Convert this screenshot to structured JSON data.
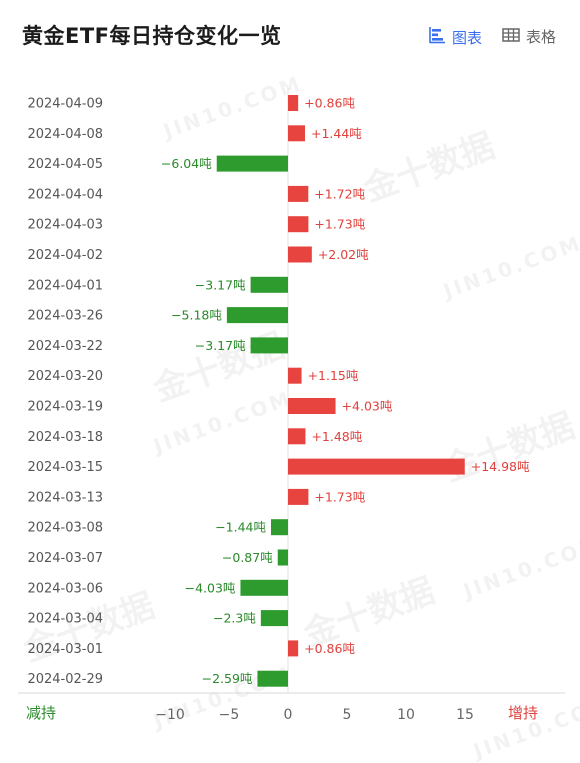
{
  "header": {
    "title": "黄金ETF每日持仓变化一览",
    "tabs": [
      {
        "label": "图表",
        "icon": "bar-chart-icon",
        "active": true
      },
      {
        "label": "表格",
        "icon": "table-icon",
        "active": false
      }
    ]
  },
  "watermark": {
    "text_cn": "金十数据",
    "text_en": "JIN10.COM"
  },
  "legend": {
    "decrease": "减持",
    "increase": "增持"
  },
  "colors": {
    "positive": "#e8443f",
    "negative": "#2e9b2e",
    "accent": "#3a6ff0",
    "positive_text": "#e0413c",
    "negative_text": "#2a8a2a"
  },
  "chart_data": {
    "type": "bar",
    "orientation": "horizontal",
    "unit": "吨",
    "categories": [
      "2024-04-09",
      "2024-04-08",
      "2024-04-05",
      "2024-04-04",
      "2024-04-03",
      "2024-04-02",
      "2024-04-01",
      "2024-03-26",
      "2024-03-22",
      "2024-03-20",
      "2024-03-19",
      "2024-03-18",
      "2024-03-15",
      "2024-03-13",
      "2024-03-08",
      "2024-03-07",
      "2024-03-06",
      "2024-03-04",
      "2024-03-01",
      "2024-02-29"
    ],
    "values": [
      0.86,
      1.44,
      -6.04,
      1.72,
      1.73,
      2.02,
      -3.17,
      -5.18,
      -3.17,
      1.15,
      4.03,
      1.48,
      14.98,
      1.73,
      -1.44,
      -0.87,
      -4.03,
      -2.3,
      0.86,
      -2.59
    ],
    "labels": [
      "+0.86吨",
      "+1.44吨",
      "−6.04吨",
      "+1.72吨",
      "+1.73吨",
      "+2.02吨",
      "−3.17吨",
      "−5.18吨",
      "−3.17吨",
      "+1.15吨",
      "+4.03吨",
      "+1.48吨",
      "+14.98吨",
      "+1.73吨",
      "−1.44吨",
      "−0.87吨",
      "−4.03吨",
      "−2.3吨",
      "+0.86吨",
      "−2.59吨"
    ],
    "xticks": [
      -10,
      -5,
      0,
      5,
      10,
      15
    ],
    "xtick_labels": [
      "−10",
      "−5",
      "0",
      "5",
      "10",
      "15"
    ],
    "xlim": [
      -12.7,
      19.3
    ],
    "grid": false
  }
}
